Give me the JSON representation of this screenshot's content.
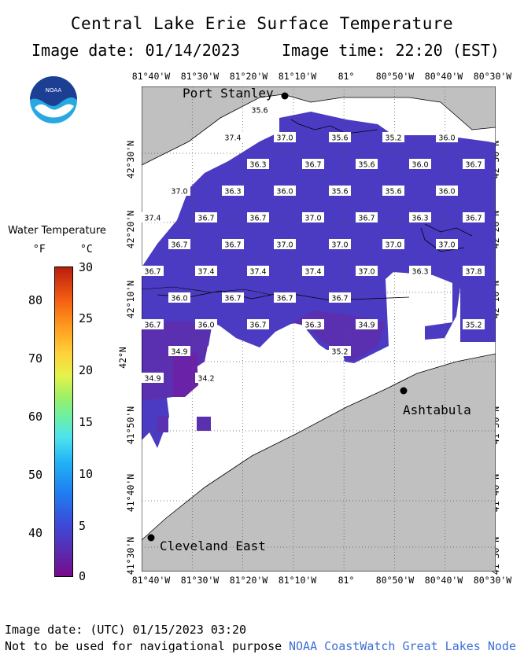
{
  "header": {
    "title": "Central Lake Erie Surface Temperature",
    "image_date": "Image date: 01/14/2023",
    "image_time": "Image time: 22:20 (EST)"
  },
  "logo": {
    "icon": "noaa-logo-icon",
    "text": "NOAA"
  },
  "axes": {
    "lon_labels": [
      "81°40'W",
      "81°30'W",
      "81°20'W",
      "81°10'W",
      "81°",
      "80°50'W",
      "80°40'W",
      "80°30'W"
    ],
    "lat_labels": [
      "42°30'N",
      "42°20'N",
      "42°10'N",
      "42°N",
      "41°50'N",
      "41°40'N",
      "41°30'N"
    ],
    "lon_range": [
      -81.6667,
      -80.5
    ],
    "lat_range": [
      41.4667,
      42.6333
    ]
  },
  "legend": {
    "title": "Water Temperature",
    "unit_f": "°F",
    "unit_c": "°C",
    "f_ticks": [
      "80",
      "70",
      "60",
      "50",
      "40"
    ],
    "c_ticks": [
      "30",
      "25",
      "20",
      "15",
      "10",
      "5",
      "0"
    ]
  },
  "cities": [
    {
      "name": "Port Stanley"
    },
    {
      "name": "Ashtabula"
    },
    {
      "name": "Cleveland East"
    }
  ],
  "temperature_labels": [
    {
      "v": "35.6"
    },
    {
      "v": "37.4"
    },
    {
      "v": "37.0"
    },
    {
      "v": "35.6"
    },
    {
      "v": "35.2"
    },
    {
      "v": "36.0"
    },
    {
      "v": "36.3"
    },
    {
      "v": "36.7"
    },
    {
      "v": "35.6"
    },
    {
      "v": "36.0"
    },
    {
      "v": "36.7"
    },
    {
      "v": "37.0"
    },
    {
      "v": "36.3"
    },
    {
      "v": "36.0"
    },
    {
      "v": "35.6"
    },
    {
      "v": "35.6"
    },
    {
      "v": "36.0"
    },
    {
      "v": "37.4"
    },
    {
      "v": "36.7"
    },
    {
      "v": "36.7"
    },
    {
      "v": "37.0"
    },
    {
      "v": "36.7"
    },
    {
      "v": "36.3"
    },
    {
      "v": "36.7"
    },
    {
      "v": "36.7"
    },
    {
      "v": "36.7"
    },
    {
      "v": "37.0"
    },
    {
      "v": "37.0"
    },
    {
      "v": "37.0"
    },
    {
      "v": "37.0"
    },
    {
      "v": "36.7"
    },
    {
      "v": "37.4"
    },
    {
      "v": "37.4"
    },
    {
      "v": "37.4"
    },
    {
      "v": "37.0"
    },
    {
      "v": "36.3"
    },
    {
      "v": "37.8"
    },
    {
      "v": "36.0"
    },
    {
      "v": "36.7"
    },
    {
      "v": "36.7"
    },
    {
      "v": "36.7"
    },
    {
      "v": "36.7"
    },
    {
      "v": "36.0"
    },
    {
      "v": "36.7"
    },
    {
      "v": "36.3"
    },
    {
      "v": "34.9"
    },
    {
      "v": "35.2"
    },
    {
      "v": "34.9"
    },
    {
      "v": "35.2"
    },
    {
      "v": "34.9"
    },
    {
      "v": "34.2"
    }
  ],
  "colors": {
    "land": "#c0c0c0",
    "water_cold": "#4f3fc6",
    "water_deep": "#5a2fb8",
    "no_data": "#ffffff",
    "credit": "#3d6fd6"
  },
  "footer": {
    "utc_date": "Image date: (UTC) 01/15/2023  03:20",
    "warning": "Not to be used for navigational purpose",
    "credit": "NOAA CoastWatch Great Lakes Node"
  }
}
